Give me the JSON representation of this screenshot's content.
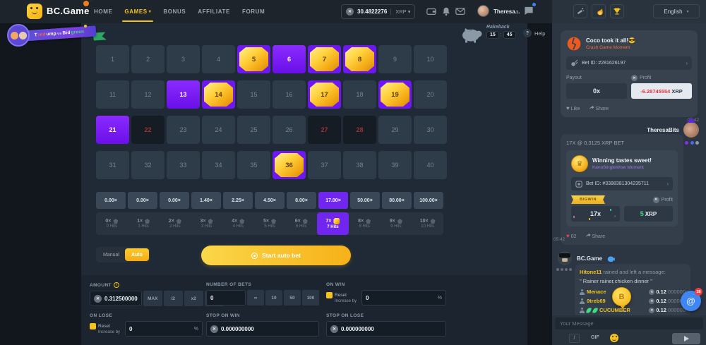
{
  "colors": {
    "accent_yellow": "#f5c31d",
    "selection_purple": "#7a1fff",
    "gem_gold": "#fcc419",
    "loss_red": "#e8363f",
    "win_green": "#3ddc84",
    "fab_blue": "#3f86f2"
  },
  "nav": {
    "brand": "BC.Game",
    "items": [
      {
        "label": "HOME",
        "active": false
      },
      {
        "label": "GAMES",
        "active": true
      },
      {
        "label": "BONUS",
        "active": false
      },
      {
        "label": "AFFILIATE",
        "active": false
      },
      {
        "label": "FORUM",
        "active": false
      }
    ],
    "balance": "30.4822276",
    "currency": "XRP",
    "username": "Theresa...",
    "language": "English"
  },
  "banner": {
    "segments": [
      {
        "text": "T",
        "color": "#ffffff"
      },
      {
        "text": "red",
        "color": "#ff5b4a"
      },
      {
        "text": "ump",
        "color": "#ffffff"
      },
      {
        "text": " vs ",
        "color": "#cfd6f2"
      },
      {
        "text": "Bid",
        "color": "#ffffff"
      },
      {
        "text": "green",
        "color": "#3ddc84"
      }
    ]
  },
  "rakeback": {
    "label": "Rakeback",
    "minutes": "15",
    "seconds": "45",
    "help_label": "Help"
  },
  "keno": {
    "hit_numbers": [
      5,
      7,
      8,
      14,
      17,
      19,
      36
    ],
    "selected_numbers": [
      6,
      13,
      21
    ],
    "miss_numbers": [
      22,
      27,
      28
    ],
    "payouts": [
      "0.00×",
      "0.00×",
      "0.00×",
      "1.40×",
      "2.25×",
      "4.50×",
      "8.00×",
      "17.00×",
      "50.00×",
      "80.00×",
      "100.00×"
    ],
    "active_payout_index": 7,
    "hit_tiers": [
      {
        "mult": "0×",
        "hits": "0 Hits"
      },
      {
        "mult": "1×",
        "hits": "1 Hits"
      },
      {
        "mult": "2×",
        "hits": "2 Hits"
      },
      {
        "mult": "3×",
        "hits": "3 Hits"
      },
      {
        "mult": "4×",
        "hits": "4 Hits"
      },
      {
        "mult": "5×",
        "hits": "5 Hits"
      },
      {
        "mult": "6×",
        "hits": "6 Hits"
      },
      {
        "mult": "7×",
        "hits": "7 Hits"
      },
      {
        "mult": "8×",
        "hits": "8 Hits"
      },
      {
        "mult": "9×",
        "hits": "9 Hits"
      },
      {
        "mult": "10×",
        "hits": "10 Hits"
      }
    ],
    "active_tier_index": 7,
    "mode_manual": "Manual",
    "mode_auto": "Auto",
    "start_button": "Start auto bet"
  },
  "controls": {
    "amount": {
      "label": "AMOUNT",
      "value": "0.312500000",
      "buttons": [
        "MAX",
        "/2",
        "x2",
        "MIN"
      ]
    },
    "number_of_bets": {
      "label": "NUMBER OF BETS",
      "value": "0",
      "buttons": [
        "∞",
        "10",
        "50",
        "100"
      ]
    },
    "on_win": {
      "label": "ON WIN",
      "reset_label": "Reset",
      "increase_label": "Increase by",
      "value": "0",
      "suffix": "%"
    },
    "on_lose": {
      "label": "ON LOSE",
      "reset_label": "Reset",
      "increase_label": "Increase by",
      "value": "0",
      "suffix": "%"
    },
    "stop_on_win": {
      "label": "STOP ON WIN",
      "value": "0.000000000"
    },
    "stop_on_lose": {
      "label": "STOP ON LOSE",
      "value": "0.000000000"
    }
  },
  "chat": {
    "moment1": {
      "title": "Coco took it all!😎",
      "subtitle": "Crash Game Moment",
      "bet_id": "Bet ID: #281626197",
      "payout_label": "Payout",
      "payout_value": "0x",
      "profit_label": "Profit",
      "profit_value": "-6.28745554",
      "profit_currency": "XRP",
      "like_label": "Like",
      "share_label": "Share",
      "time": "05:42"
    },
    "moment2": {
      "username": "TheresaBits",
      "header": "17X @ 0.3125 XRP BET",
      "title": "Winning tastes sweet!",
      "subtitle": "KenoSingleWow Moment",
      "bet_id": "Bet ID: #3388381304235711",
      "badge": "BIGWIN",
      "profit_label": "Profit",
      "multiplier": "17x",
      "profit_value": "5",
      "profit_currency": "XRP",
      "likes_count": "02",
      "share_label": "Share",
      "time": "05:42"
    },
    "rain": {
      "username": "BC.Game",
      "intro_user": "Hitone11",
      "intro_rest": " rained and left a message:",
      "quote": "\" Rainer rainer,chicken dinner \"",
      "recipients": [
        {
          "name": "Menace",
          "amount_main": "0.12",
          "amount_zeros": "000000",
          "leaves": false
        },
        {
          "name": "0treb69",
          "amount_main": "0.12",
          "amount_zeros": "000000",
          "leaves": false
        },
        {
          "name": "CUCUMBER",
          "amount_main": "0.12",
          "amount_zeros": "000000",
          "leaves": true
        }
      ]
    },
    "mention_badge": "28",
    "input_placeholder": "Your Message",
    "slash_label": "/",
    "gif_label": "GIF"
  }
}
